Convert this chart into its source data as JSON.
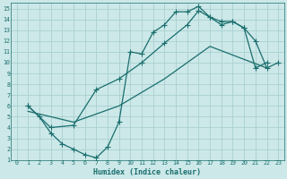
{
  "bg_color": "#cce8e8",
  "grid_color": "#aacfcf",
  "line_color": "#1a6e6e",
  "xlabel": "Humidex (Indice chaleur)",
  "xlim": [
    -0.5,
    23.5
  ],
  "ylim": [
    1,
    15.5
  ],
  "xticks": [
    0,
    1,
    2,
    3,
    4,
    5,
    6,
    7,
    8,
    9,
    10,
    11,
    12,
    13,
    14,
    15,
    16,
    17,
    18,
    19,
    20,
    21,
    22,
    23
  ],
  "yticks": [
    1,
    2,
    3,
    4,
    5,
    6,
    7,
    8,
    9,
    10,
    11,
    12,
    13,
    14,
    15
  ],
  "curve1_x": [
    1,
    2,
    3,
    4,
    5,
    6,
    7,
    8,
    9,
    10,
    11,
    12,
    13,
    14,
    15,
    16,
    17,
    18,
    19,
    20,
    21,
    22,
    23
  ],
  "curve1_y": [
    6,
    5,
    3.5,
    2.5,
    2.0,
    1.5,
    1.2,
    2.2,
    4.5,
    11.0,
    10.8,
    12.8,
    13.5,
    14.7,
    14.7,
    15.2,
    14.2,
    13.8,
    13.8,
    13.2,
    12.0,
    9.5,
    10.0
  ],
  "curve2_x": [
    1,
    3,
    5,
    7,
    9,
    11,
    13,
    15,
    16,
    17,
    18,
    19,
    20,
    21,
    22
  ],
  "curve2_y": [
    6,
    4.0,
    4.2,
    7.5,
    8.5,
    10.0,
    11.8,
    13.5,
    14.8,
    14.2,
    13.5,
    13.8,
    13.2,
    9.5,
    10.0
  ],
  "curve3_x": [
    1,
    5,
    9,
    13,
    17,
    22
  ],
  "curve3_y": [
    5.5,
    4.5,
    6.0,
    8.5,
    11.5,
    9.5
  ]
}
